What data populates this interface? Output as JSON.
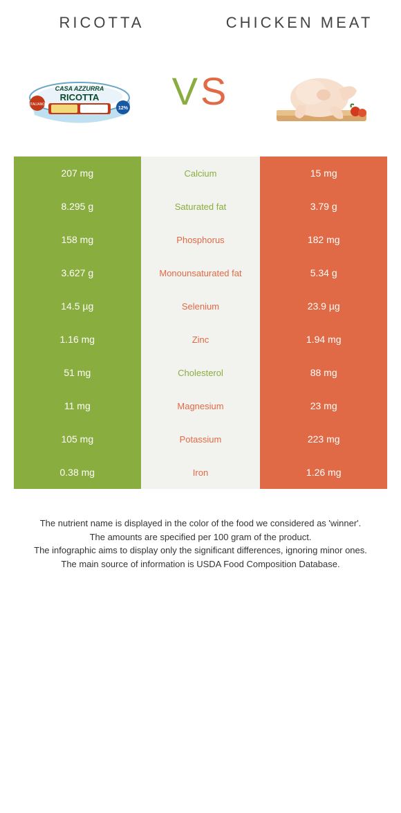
{
  "colors": {
    "green": "#8aad3f",
    "orange": "#e06a45",
    "mid_bg": "#f2f2ef",
    "text": "#333333",
    "white": "#ffffff"
  },
  "left_food": {
    "name": "RICOTTA"
  },
  "right_food": {
    "name": "CHICKEN MEAT"
  },
  "vs": {
    "v": "V",
    "s": "S"
  },
  "rows": [
    {
      "left": "207 mg",
      "label": "Calcium",
      "right": "15 mg",
      "winner": "green"
    },
    {
      "left": "8.295 g",
      "label": "Saturated fat",
      "right": "3.79 g",
      "winner": "green"
    },
    {
      "left": "158 mg",
      "label": "Phosphorus",
      "right": "182 mg",
      "winner": "orange"
    },
    {
      "left": "3.627 g",
      "label": "Monounsaturated fat",
      "right": "5.34 g",
      "winner": "orange"
    },
    {
      "left": "14.5 µg",
      "label": "Selenium",
      "right": "23.9 µg",
      "winner": "orange"
    },
    {
      "left": "1.16 mg",
      "label": "Zinc",
      "right": "1.94 mg",
      "winner": "orange"
    },
    {
      "left": "51 mg",
      "label": "Cholesterol",
      "right": "88 mg",
      "winner": "green"
    },
    {
      "left": "11 mg",
      "label": "Magnesium",
      "right": "23 mg",
      "winner": "orange"
    },
    {
      "left": "105 mg",
      "label": "Potassium",
      "right": "223 mg",
      "winner": "orange"
    },
    {
      "left": "0.38 mg",
      "label": "Iron",
      "right": "1.26 mg",
      "winner": "orange"
    }
  ],
  "footer": {
    "l1": "The nutrient name is displayed in the color of the food we considered as 'winner'.",
    "l2": "The amounts are specified per 100 gram of the product.",
    "l3": "The infographic aims to display only the significant differences, ignoring minor ones.",
    "l4": "The main source of information is USDA Food Composition Database."
  }
}
